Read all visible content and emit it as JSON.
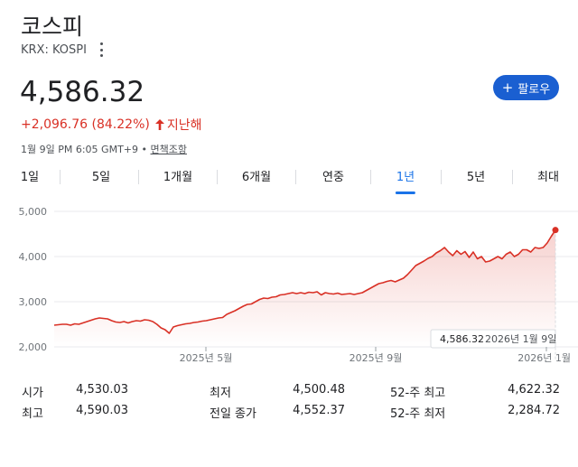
{
  "header": {
    "title": "코스피",
    "ticker": "KRX: KOSPI",
    "price": "4,586.32",
    "change": "+2,096.76 (84.22%)",
    "period_label": "지난해",
    "timestamp": "1월 9일 PM 6:05 GMT+9 •",
    "disclaimer": "면책조항",
    "follow_label": "팔로우",
    "colors": {
      "down_red": "#d93025",
      "accent_blue": "#1a73e8",
      "button_blue": "#1a5fd1"
    }
  },
  "tabs": [
    {
      "label": "1일"
    },
    {
      "label": "5일"
    },
    {
      "label": "1개월"
    },
    {
      "label": "6개월"
    },
    {
      "label": "연중"
    },
    {
      "label": "1년",
      "active": true
    },
    {
      "label": "5년"
    },
    {
      "label": "최대"
    }
  ],
  "chart_data": {
    "type": "area",
    "ylim": [
      2000,
      5000
    ],
    "y_ticks": [
      "5,000",
      "4,000",
      "3,000",
      "2,000"
    ],
    "x_ticks": [
      "2025년 5월",
      "2025년 9월",
      "2026년 1월"
    ],
    "tooltip": {
      "value": "4,586.32",
      "date": "2026년 1월 9일"
    },
    "series": [
      {
        "values": [
          2480,
          2490,
          2500,
          2500,
          2480,
          2510,
          2500,
          2530,
          2560,
          2590,
          2620,
          2640,
          2630,
          2620,
          2580,
          2550,
          2540,
          2560,
          2530,
          2560,
          2580,
          2570,
          2600,
          2590,
          2560,
          2500,
          2420,
          2380,
          2300,
          2440,
          2470,
          2490,
          2510,
          2520,
          2540,
          2550,
          2570,
          2580,
          2600,
          2620,
          2640,
          2650,
          2720,
          2760,
          2800,
          2850,
          2900,
          2940,
          2950,
          3000,
          3050,
          3080,
          3070,
          3100,
          3110,
          3150,
          3160,
          3180,
          3200,
          3180,
          3200,
          3180,
          3210,
          3200,
          3220,
          3150,
          3200,
          3180,
          3170,
          3190,
          3160,
          3170,
          3180,
          3160,
          3180,
          3200,
          3250,
          3300,
          3350,
          3400,
          3420,
          3450,
          3470,
          3440,
          3480,
          3520,
          3600,
          3700,
          3800,
          3850,
          3900,
          3960,
          4000,
          4080,
          4130,
          4200,
          4100,
          4020,
          4130,
          4050,
          4110,
          3980,
          4100,
          3950,
          4000,
          3880,
          3900,
          3950,
          4000,
          3950,
          4050,
          4100,
          4000,
          4050,
          4150,
          4150,
          4100,
          4200,
          4180,
          4200,
          4300,
          4450,
          4586.32
        ]
      }
    ]
  },
  "stats": [
    [
      {
        "label": "시가",
        "value": "4,530.03"
      },
      {
        "label": "최저",
        "value": "4,500.48"
      },
      {
        "label": "52-주 최고",
        "value": "4,622.32"
      }
    ],
    [
      {
        "label": "최고",
        "value": "4,590.03"
      },
      {
        "label": "전일 종가",
        "value": "4,552.37"
      },
      {
        "label": "52-주 최저",
        "value": "2,284.72"
      }
    ]
  ]
}
